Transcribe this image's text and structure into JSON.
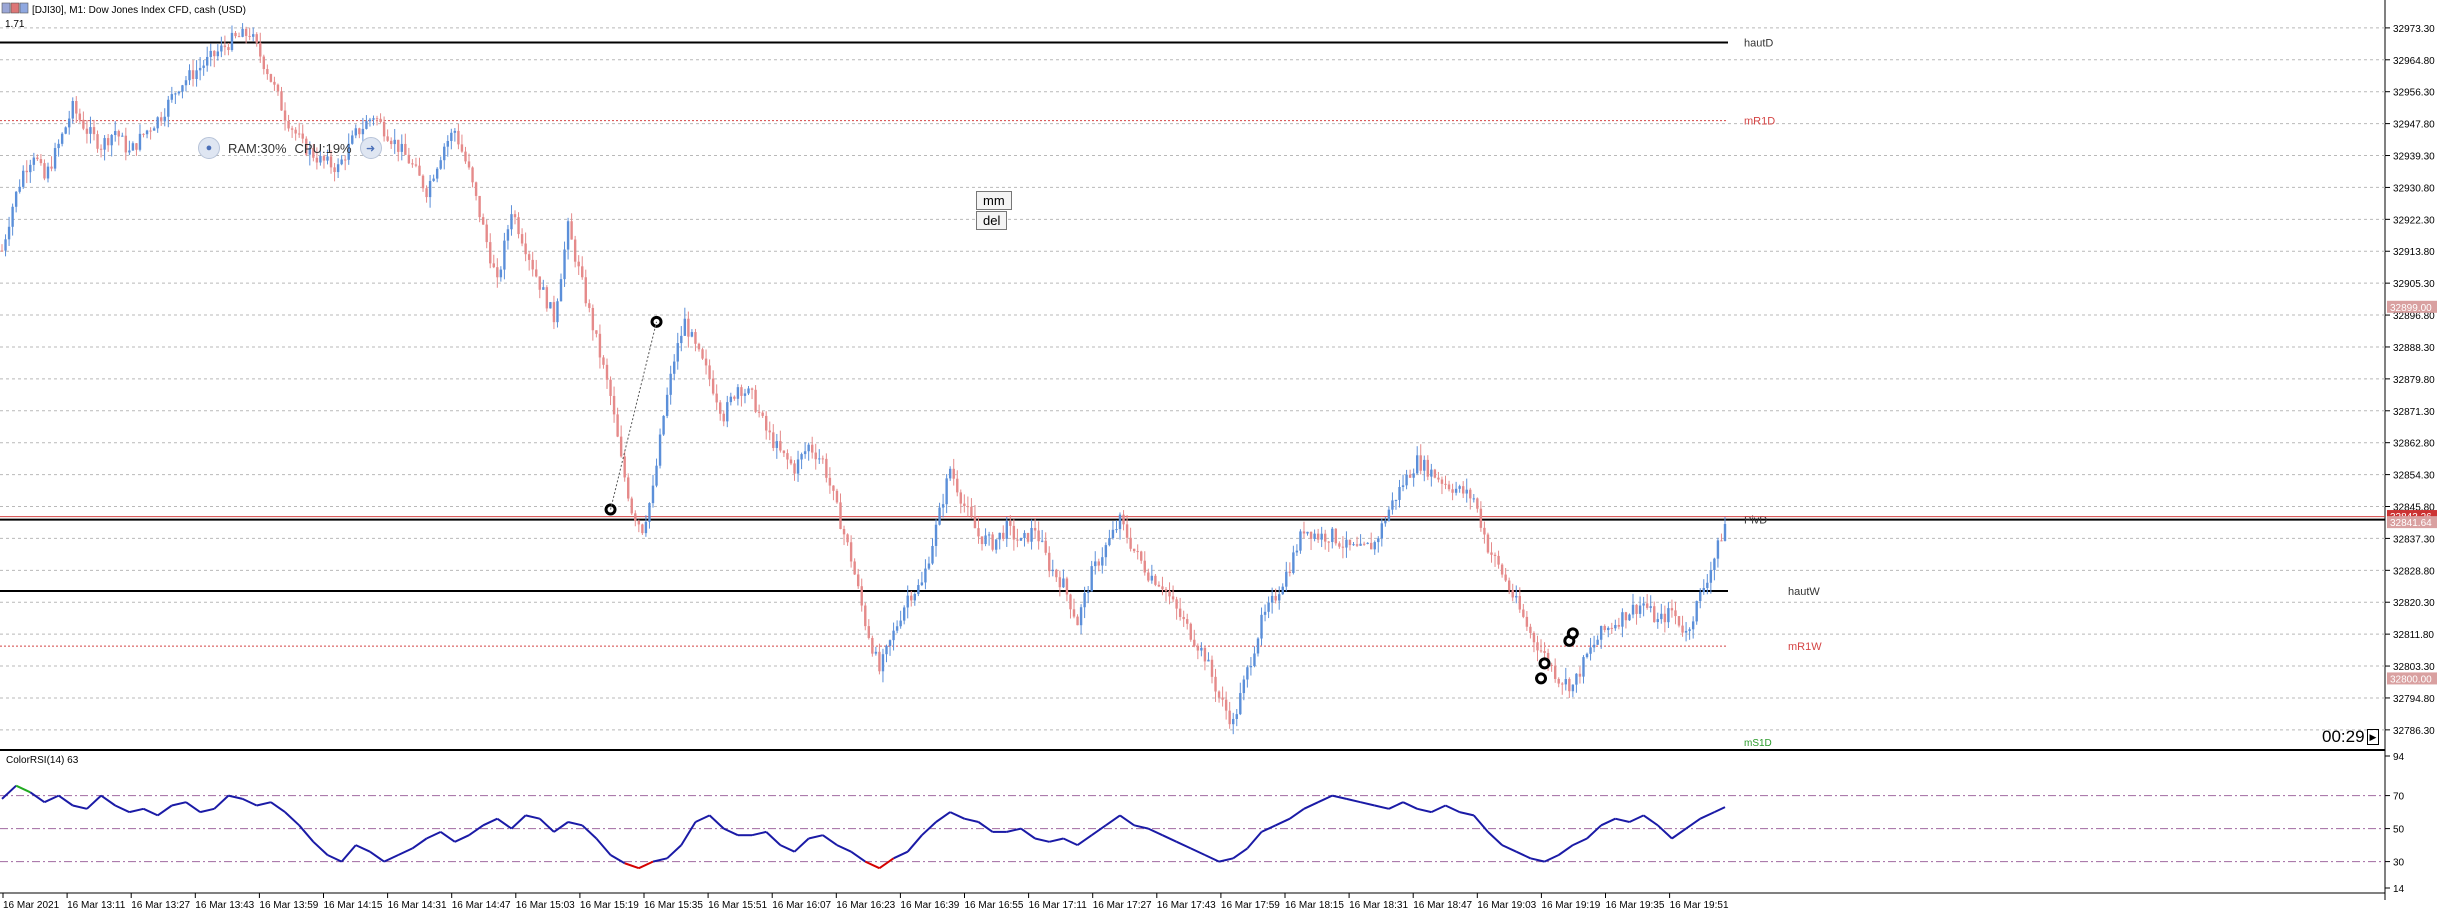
{
  "window": {
    "title": "[DJI30], M1:  Dow Jones Index CFD, cash (USD)",
    "indicator_value_top": "1.71"
  },
  "colors": {
    "bull": "#5b8fd9",
    "bear": "#e58a8a",
    "level_black": "#000000",
    "level_red": "#d44444",
    "grid": "#b9b9b9",
    "rsi_line": "#1a1aa6",
    "rsi_low": "#d40000",
    "rsi_high": "#22aa22",
    "rsi_level": "#a06aa0",
    "price_tag": "#cc3333",
    "price_tag_grey": "#d9a0a0"
  },
  "hud": {
    "ram": "RAM:30%",
    "cpu": "CPU:19%",
    "left_icon": "microphone-icon",
    "right_icon": "arrow-right-icon"
  },
  "buttons": {
    "mm": "mm",
    "del": "del"
  },
  "countdown": "00:29",
  "icons": {
    "scroll_end": "chart-shift-icon",
    "title_bar": "chart-window-icon"
  },
  "levels": {
    "hautD": "hautD",
    "mR1D": "mR1D",
    "PivD": "PivD",
    "hautW": "hautW",
    "mR1W": "mR1W",
    "mS1D": "mS1D"
  },
  "price_axis": {
    "ticks": [
      "32973.30",
      "32964.80",
      "32956.30",
      "32947.80",
      "32939.30",
      "32930.80",
      "32922.30",
      "32913.80",
      "32905.30",
      "32896.80",
      "32888.30",
      "32879.80",
      "32871.30",
      "32862.80",
      "32854.30",
      "32845.80",
      "32837.30",
      "32828.80",
      "32820.30",
      "32811.80",
      "32803.30",
      "32794.80",
      "32786.30"
    ],
    "tags": [
      "32899.00",
      "32843.26",
      "32841.64",
      "32800.00"
    ]
  },
  "rsi": {
    "label": "ColorRSI(14) 63",
    "ticks": [
      "94",
      "70",
      "50",
      "30",
      "14"
    ]
  },
  "time_axis": {
    "ticks": [
      "16 Mar 2021",
      "16 Mar 13:11",
      "16 Mar 13:27",
      "16 Mar 13:43",
      "16 Mar 13:59",
      "16 Mar 14:15",
      "16 Mar 14:31",
      "16 Mar 14:47",
      "16 Mar 15:03",
      "16 Mar 15:19",
      "16 Mar 15:35",
      "16 Mar 15:51",
      "16 Mar 16:07",
      "16 Mar 16:23",
      "16 Mar 16:39",
      "16 Mar 16:55",
      "16 Mar 17:11",
      "16 Mar 17:27",
      "16 Mar 17:43",
      "16 Mar 17:59",
      "16 Mar 18:15",
      "16 Mar 18:31",
      "16 Mar 18:47",
      "16 Mar 19:03",
      "16 Mar 19:19",
      "16 Mar 19:35",
      "16 Mar 19:51"
    ]
  },
  "chart_data": {
    "type": "line",
    "price_range": [
      32782,
      32977
    ],
    "level_values": {
      "hautD": 32969.4,
      "mR1D": 32948.6,
      "PivD": 32842.3,
      "hautW": 32823.3,
      "mR1W": 32808.6,
      "mS1D": 32782.5
    },
    "close_path_points": [
      [
        0,
        32914
      ],
      [
        3,
        32926
      ],
      [
        6,
        32935
      ],
      [
        9,
        32940
      ],
      [
        12,
        32933
      ],
      [
        16,
        32942
      ],
      [
        20,
        32952
      ],
      [
        24,
        32946
      ],
      [
        28,
        32942
      ],
      [
        32,
        32946
      ],
      [
        36,
        32940
      ],
      [
        40,
        32945
      ],
      [
        45,
        32950
      ],
      [
        50,
        32958
      ],
      [
        55,
        32962
      ],
      [
        60,
        32966
      ],
      [
        65,
        32970
      ],
      [
        70,
        32972
      ],
      [
        75,
        32962
      ],
      [
        80,
        32950
      ],
      [
        85,
        32942
      ],
      [
        90,
        32938
      ],
      [
        95,
        32936
      ],
      [
        100,
        32945
      ],
      [
        105,
        32950
      ],
      [
        110,
        32944
      ],
      [
        115,
        32938
      ],
      [
        120,
        32930
      ],
      [
        125,
        32942
      ],
      [
        128,
        32946
      ],
      [
        132,
        32935
      ],
      [
        136,
        32920
      ],
      [
        140,
        32905
      ],
      [
        144,
        32925
      ],
      [
        148,
        32915
      ],
      [
        152,
        32905
      ],
      [
        156,
        32896
      ],
      [
        160,
        32920
      ],
      [
        164,
        32905
      ],
      [
        168,
        32890
      ],
      [
        172,
        32875
      ],
      [
        175,
        32858
      ],
      [
        178,
        32845
      ],
      [
        181,
        32840
      ],
      [
        184,
        32850
      ],
      [
        187,
        32870
      ],
      [
        190,
        32885
      ],
      [
        193,
        32895
      ],
      [
        196,
        32888
      ],
      [
        200,
        32880
      ],
      [
        204,
        32870
      ],
      [
        208,
        32878
      ],
      [
        212,
        32875
      ],
      [
        216,
        32866
      ],
      [
        220,
        32860
      ],
      [
        224,
        32856
      ],
      [
        228,
        32862
      ],
      [
        232,
        32858
      ],
      [
        236,
        32845
      ],
      [
        240,
        32832
      ],
      [
        244,
        32815
      ],
      [
        248,
        32802
      ],
      [
        252,
        32812
      ],
      [
        256,
        32822
      ],
      [
        260,
        32825
      ],
      [
        264,
        32840
      ],
      [
        268,
        32856
      ],
      [
        272,
        32846
      ],
      [
        276,
        32838
      ],
      [
        280,
        32836
      ],
      [
        284,
        32840
      ],
      [
        288,
        32836
      ],
      [
        292,
        32840
      ],
      [
        296,
        32830
      ],
      [
        300,
        32825
      ],
      [
        304,
        32815
      ],
      [
        308,
        32828
      ],
      [
        312,
        32835
      ],
      [
        316,
        32842
      ],
      [
        320,
        32834
      ],
      [
        324,
        32828
      ],
      [
        328,
        32825
      ],
      [
        332,
        32818
      ],
      [
        336,
        32812
      ],
      [
        340,
        32806
      ],
      [
        344,
        32795
      ],
      [
        348,
        32788
      ],
      [
        352,
        32802
      ],
      [
        356,
        32815
      ],
      [
        360,
        32822
      ],
      [
        364,
        32830
      ],
      [
        368,
        32840
      ],
      [
        372,
        32838
      ],
      [
        376,
        32838
      ],
      [
        380,
        32835
      ],
      [
        384,
        32834
      ],
      [
        388,
        32836
      ],
      [
        392,
        32845
      ],
      [
        396,
        32852
      ],
      [
        400,
        32858
      ],
      [
        404,
        32855
      ],
      [
        408,
        32852
      ],
      [
        412,
        32850
      ],
      [
        416,
        32848
      ],
      [
        420,
        32835
      ],
      [
        424,
        32828
      ],
      [
        428,
        32820
      ],
      [
        432,
        32812
      ],
      [
        436,
        32806
      ],
      [
        440,
        32800
      ],
      [
        444,
        32798
      ],
      [
        448,
        32806
      ],
      [
        452,
        32812
      ],
      [
        456,
        32815
      ],
      [
        460,
        32818
      ],
      [
        464,
        32820
      ],
      [
        468,
        32815
      ],
      [
        472,
        32818
      ],
      [
        476,
        32812
      ],
      [
        480,
        32822
      ],
      [
        484,
        32832
      ],
      [
        487,
        32841
      ]
    ],
    "rsi_path_points": [
      [
        0,
        68
      ],
      [
        4,
        76
      ],
      [
        8,
        72
      ],
      [
        12,
        66
      ],
      [
        16,
        70
      ],
      [
        20,
        64
      ],
      [
        24,
        62
      ],
      [
        28,
        70
      ],
      [
        32,
        64
      ],
      [
        36,
        60
      ],
      [
        40,
        62
      ],
      [
        44,
        58
      ],
      [
        48,
        64
      ],
      [
        52,
        66
      ],
      [
        56,
        60
      ],
      [
        60,
        62
      ],
      [
        64,
        70
      ],
      [
        68,
        68
      ],
      [
        72,
        64
      ],
      [
        76,
        66
      ],
      [
        80,
        60
      ],
      [
        84,
        52
      ],
      [
        88,
        42
      ],
      [
        92,
        34
      ],
      [
        96,
        30
      ],
      [
        100,
        40
      ],
      [
        104,
        36
      ],
      [
        108,
        30
      ],
      [
        112,
        34
      ],
      [
        116,
        38
      ],
      [
        120,
        44
      ],
      [
        124,
        48
      ],
      [
        128,
        42
      ],
      [
        132,
        46
      ],
      [
        136,
        52
      ],
      [
        140,
        56
      ],
      [
        144,
        50
      ],
      [
        148,
        58
      ],
      [
        152,
        56
      ],
      [
        156,
        48
      ],
      [
        160,
        54
      ],
      [
        164,
        52
      ],
      [
        168,
        44
      ],
      [
        172,
        34
      ],
      [
        176,
        29
      ],
      [
        180,
        26
      ],
      [
        184,
        30
      ],
      [
        188,
        32
      ],
      [
        192,
        40
      ],
      [
        196,
        54
      ],
      [
        200,
        58
      ],
      [
        204,
        50
      ],
      [
        208,
        46
      ],
      [
        212,
        46
      ],
      [
        216,
        48
      ],
      [
        220,
        40
      ],
      [
        224,
        36
      ],
      [
        228,
        44
      ],
      [
        232,
        46
      ],
      [
        236,
        40
      ],
      [
        240,
        36
      ],
      [
        244,
        30
      ],
      [
        248,
        26
      ],
      [
        252,
        32
      ],
      [
        256,
        36
      ],
      [
        260,
        46
      ],
      [
        264,
        54
      ],
      [
        268,
        60
      ],
      [
        272,
        56
      ],
      [
        276,
        54
      ],
      [
        280,
        48
      ],
      [
        284,
        48
      ],
      [
        288,
        50
      ],
      [
        292,
        44
      ],
      [
        296,
        42
      ],
      [
        300,
        44
      ],
      [
        304,
        40
      ],
      [
        308,
        46
      ],
      [
        312,
        52
      ],
      [
        316,
        58
      ],
      [
        320,
        52
      ],
      [
        324,
        50
      ],
      [
        328,
        46
      ],
      [
        332,
        42
      ],
      [
        336,
        38
      ],
      [
        340,
        34
      ],
      [
        344,
        30
      ],
      [
        348,
        32
      ],
      [
        352,
        38
      ],
      [
        356,
        48
      ],
      [
        360,
        52
      ],
      [
        364,
        56
      ],
      [
        368,
        62
      ],
      [
        372,
        66
      ],
      [
        376,
        70
      ],
      [
        380,
        68
      ],
      [
        384,
        66
      ],
      [
        388,
        64
      ],
      [
        392,
        62
      ],
      [
        396,
        66
      ],
      [
        400,
        62
      ],
      [
        404,
        60
      ],
      [
        408,
        64
      ],
      [
        412,
        60
      ],
      [
        416,
        58
      ],
      [
        420,
        48
      ],
      [
        424,
        40
      ],
      [
        428,
        36
      ],
      [
        432,
        32
      ],
      [
        436,
        30
      ],
      [
        440,
        34
      ],
      [
        444,
        40
      ],
      [
        448,
        44
      ],
      [
        452,
        52
      ],
      [
        456,
        56
      ],
      [
        460,
        54
      ],
      [
        464,
        58
      ],
      [
        468,
        52
      ],
      [
        472,
        44
      ],
      [
        476,
        50
      ],
      [
        480,
        56
      ],
      [
        484,
        60
      ],
      [
        487,
        63
      ]
    ],
    "rsi_levels": [
      70,
      50,
      30
    ],
    "rsi_range": [
      14,
      94
    ],
    "markers": [
      [
        172,
        32845
      ],
      [
        185,
        32895
      ],
      [
        435,
        32800
      ],
      [
        436,
        32804
      ],
      [
        443,
        32810
      ],
      [
        444,
        32812
      ]
    ]
  }
}
